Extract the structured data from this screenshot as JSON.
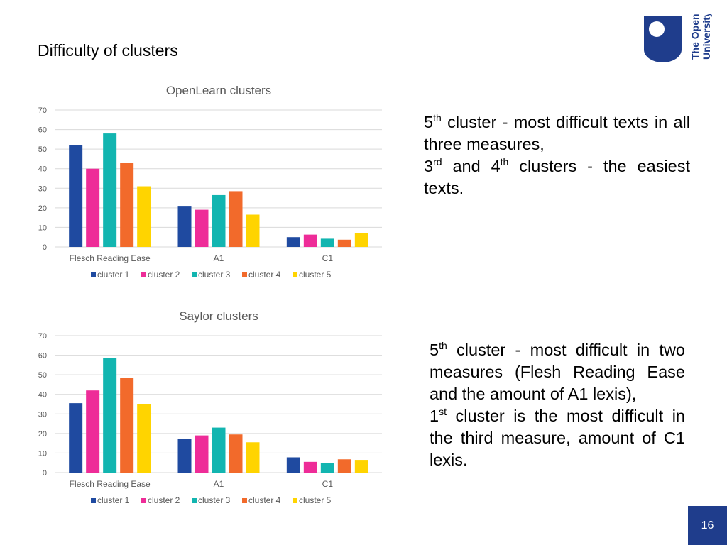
{
  "slide": {
    "title": "Difficulty of clusters",
    "page_number": "16",
    "logo_text": [
      "The Open",
      "University"
    ]
  },
  "colors": {
    "cluster_1": "#1f4aa0",
    "cluster_2": "#ee2c98",
    "cluster_3": "#12b5b0",
    "cluster_4": "#f26a2b",
    "cluster_5": "#ffd400",
    "brand": "#1f3d8c"
  },
  "notes": {
    "openlearn": {
      "line1_num": "5",
      "line1_sup": "th",
      "line1_text": " cluster - most difficult texts in all three measures,",
      "line2_num": "3",
      "line2_sup": "rd",
      "line2_mid": " and 4",
      "line2_sup2": "th",
      "line2_text": " clusters - the easiest texts."
    },
    "saylor": {
      "line1_num": "5",
      "line1_sup": "th",
      "line1_text": " cluster - most difficult in two measures (Flesh Reading Ease and the amount of A1 lexis),",
      "line2_num": "1",
      "line2_sup": "st",
      "line2_text": " cluster is the most difficult in the third measure, amount of C1 lexis."
    }
  },
  "chart_data": [
    {
      "type": "bar",
      "title": "OpenLearn clusters",
      "categories": [
        "Flesch Reading Ease",
        "A1",
        "C1"
      ],
      "ylim": [
        0,
        70
      ],
      "yticks": [
        0,
        10,
        20,
        30,
        40,
        50,
        60,
        70
      ],
      "grid": true,
      "legend": "bottom",
      "series": [
        {
          "name": "cluster 1",
          "values": [
            52,
            21,
            5
          ]
        },
        {
          "name": "cluster 2",
          "values": [
            40,
            19,
            6.3
          ]
        },
        {
          "name": "cluster 3",
          "values": [
            58,
            26.5,
            4.2
          ]
        },
        {
          "name": "cluster 4",
          "values": [
            43,
            28.5,
            3.7
          ]
        },
        {
          "name": "cluster 5",
          "values": [
            31,
            16.5,
            7
          ]
        }
      ]
    },
    {
      "type": "bar",
      "title": "Saylor clusters",
      "categories": [
        "Flesch Reading Ease",
        "A1",
        "C1"
      ],
      "ylim": [
        0,
        70
      ],
      "yticks": [
        0,
        10,
        20,
        30,
        40,
        50,
        60,
        70
      ],
      "grid": true,
      "legend": "bottom",
      "series": [
        {
          "name": "cluster 1",
          "values": [
            35.5,
            17.2,
            7.8
          ]
        },
        {
          "name": "cluster 2",
          "values": [
            42,
            19,
            5.5
          ]
        },
        {
          "name": "cluster 3",
          "values": [
            58.5,
            23,
            5
          ]
        },
        {
          "name": "cluster 4",
          "values": [
            48.5,
            19.5,
            6.8
          ]
        },
        {
          "name": "cluster 5",
          "values": [
            35,
            15.5,
            6.5
          ]
        }
      ]
    }
  ]
}
